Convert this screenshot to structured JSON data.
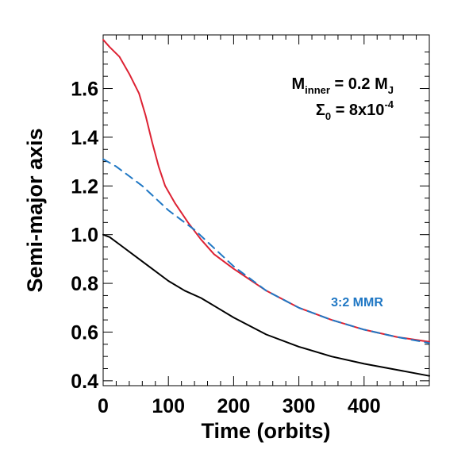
{
  "chart_data": {
    "type": "line",
    "title": "",
    "xlabel": "Time (orbits)",
    "ylabel": "Semi-major axis",
    "xlim": [
      0,
      500
    ],
    "ylim": [
      0.38,
      1.82
    ],
    "x_ticks": [
      0,
      100,
      200,
      300,
      400
    ],
    "y_ticks": [
      0.4,
      0.6,
      0.8,
      1.0,
      1.2,
      1.4,
      1.6
    ],
    "x_tick_labels": [
      "0",
      "100",
      "200",
      "300",
      "400"
    ],
    "y_tick_labels": [
      "0.4",
      "0.6",
      "0.8",
      "1.0",
      "1.2",
      "1.4",
      "1.6"
    ],
    "grid": false,
    "annotation": {
      "line1_main": "M",
      "line1_sub": "inner",
      "line1_rest": " = 0.2 M",
      "line1_sub2": "J",
      "line2_main": "Σ",
      "line2_sub": "0",
      "line2_rest": " = 8x10",
      "line2_sup": "-4"
    },
    "mmr_label": "3:2 MMR",
    "series": [
      {
        "color": "#dd2233",
        "style": "solid",
        "x": [
          0,
          10,
          25,
          40,
          55,
          65,
          75,
          85,
          95,
          110,
          130,
          150,
          170,
          200,
          250,
          300,
          350,
          400,
          450,
          500
        ],
        "y": [
          1.8,
          1.77,
          1.73,
          1.66,
          1.58,
          1.49,
          1.38,
          1.28,
          1.2,
          1.13,
          1.05,
          0.98,
          0.92,
          0.86,
          0.77,
          0.7,
          0.65,
          0.61,
          0.58,
          0.56
        ]
      },
      {
        "color": "#1f77c4",
        "style": "dashed",
        "x": [
          0,
          20,
          40,
          60,
          80,
          100,
          120,
          140,
          160,
          180,
          200,
          250,
          300,
          350,
          400,
          450,
          500
        ],
        "y": [
          1.31,
          1.28,
          1.24,
          1.2,
          1.15,
          1.1,
          1.06,
          1.02,
          0.97,
          0.92,
          0.87,
          0.77,
          0.7,
          0.65,
          0.61,
          0.58,
          0.555
        ]
      },
      {
        "color": "#000000",
        "style": "solid",
        "x": [
          0,
          10,
          25,
          50,
          75,
          100,
          125,
          150,
          175,
          200,
          250,
          300,
          350,
          400,
          450,
          500
        ],
        "y": [
          1.0,
          0.99,
          0.96,
          0.91,
          0.86,
          0.81,
          0.77,
          0.74,
          0.7,
          0.66,
          0.59,
          0.54,
          0.5,
          0.47,
          0.445,
          0.42
        ]
      }
    ]
  }
}
